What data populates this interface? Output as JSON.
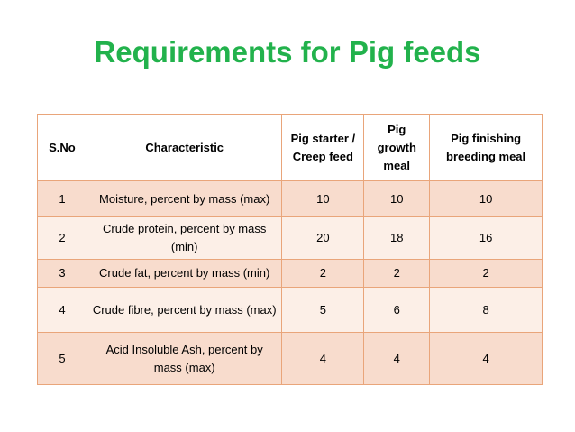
{
  "title": "Requirements for Pig feeds",
  "table": {
    "headers": [
      "S.No",
      "Characteristic",
      "Pig starter / Creep feed",
      "Pig growth meal",
      "Pig finishing breeding meal"
    ],
    "rows": [
      [
        "1",
        "Moisture, percent by mass (max)",
        "10",
        "10",
        "10"
      ],
      [
        "2",
        "Crude protein, percent by mass (min)",
        "20",
        "18",
        "16"
      ],
      [
        "3",
        "Crude fat, percent by mass (min)",
        "2",
        "2",
        "2"
      ],
      [
        "4",
        "Crude fibre, percent by mass (max)",
        "5",
        "6",
        "8"
      ],
      [
        "5",
        "Acid Insoluble Ash, percent by mass (max)",
        "4",
        "4",
        "4"
      ]
    ],
    "border_color": "#e9a57a",
    "row_fill_dark": "#f8dccd",
    "row_fill_light": "#fcefe7"
  },
  "colors": {
    "title": "#22b24c"
  }
}
